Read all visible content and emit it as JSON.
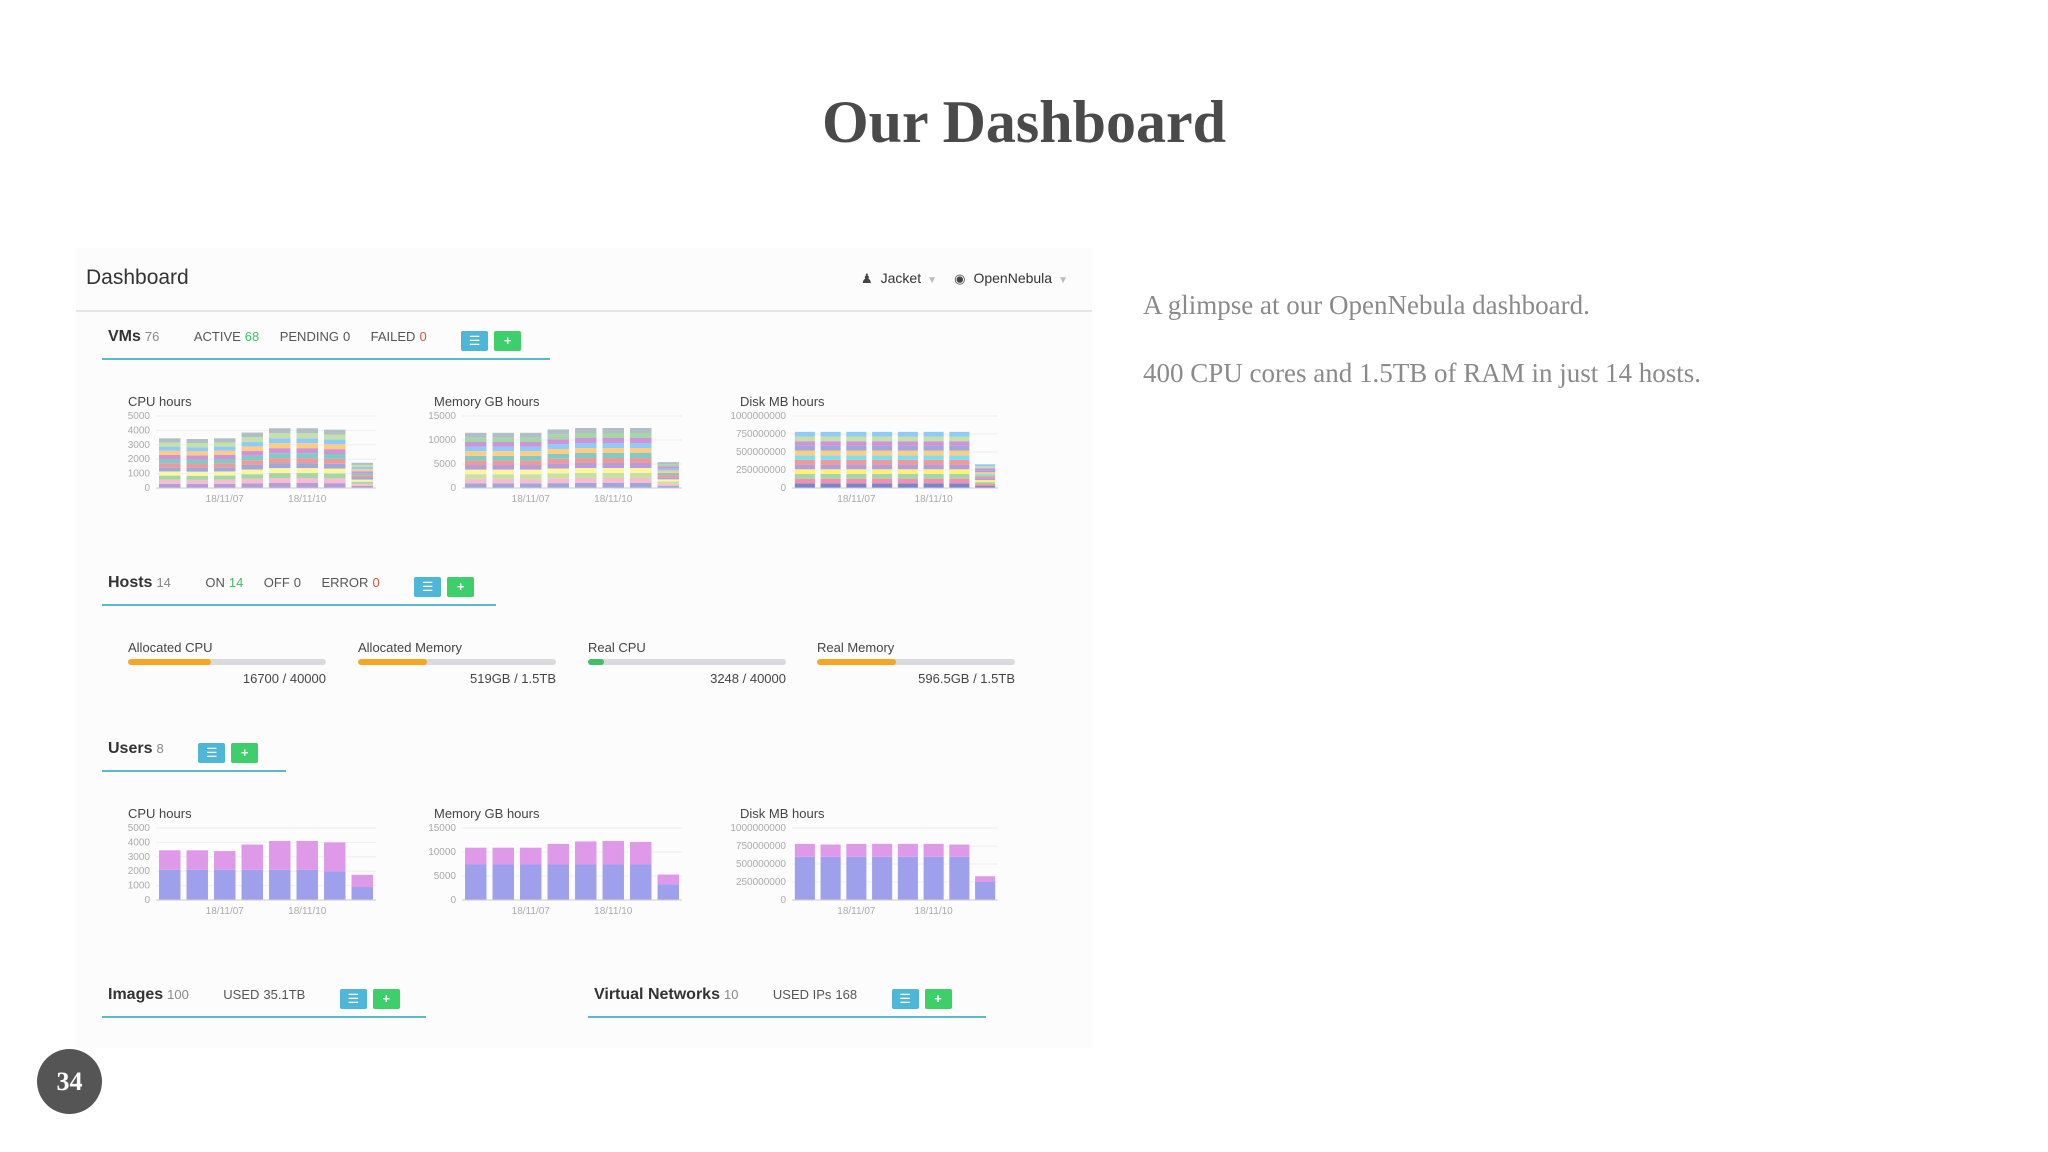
{
  "slide": {
    "title": "Our Dashboard",
    "bullets": [
      "A glimpse at our OpenNebula dashboard.",
      "400 CPU cores and 1.5TB of RAM in just 14 hosts."
    ],
    "page_number": "34"
  },
  "header": {
    "title": "Dashboard",
    "user": "Jacket",
    "zone": "OpenNebula"
  },
  "sections": {
    "vms": {
      "name": "VMs",
      "count": "76",
      "stats": [
        {
          "label": "ACTIVE",
          "value": "68",
          "color": "#3fbf66"
        },
        {
          "label": "PENDING",
          "value": "0",
          "color": "#555555"
        },
        {
          "label": "FAILED",
          "value": "0",
          "color": "#e0503a"
        }
      ]
    },
    "hosts": {
      "name": "Hosts",
      "count": "14",
      "stats": [
        {
          "label": "ON",
          "value": "14",
          "color": "#3fbf66"
        },
        {
          "label": "OFF",
          "value": "0",
          "color": "#555555"
        },
        {
          "label": "ERROR",
          "value": "0",
          "color": "#e0503a"
        }
      ]
    },
    "users": {
      "name": "Users",
      "count": "8"
    },
    "images": {
      "name": "Images",
      "count": "100",
      "used_label": "USED",
      "used_value": "35.1TB"
    },
    "vnets": {
      "name": "Virtual Networks",
      "count": "10",
      "used_label": "USED IPs",
      "used_value": "168"
    }
  },
  "host_bars": [
    {
      "label": "Allocated CPU",
      "value": "16700 / 40000",
      "fraction": 0.42,
      "color": "#f5a623"
    },
    {
      "label": "Allocated Memory",
      "value": "519GB / 1.5TB",
      "fraction": 0.35,
      "color": "#f5a623"
    },
    {
      "label": "Real CPU",
      "value": "3248 / 40000",
      "fraction": 0.08,
      "color": "#3fbf66"
    },
    {
      "label": "Real Memory",
      "value": "596.5GB / 1.5TB",
      "fraction": 0.4,
      "color": "#f5a623"
    }
  ],
  "chart_data": [
    {
      "id": "vm-cpu",
      "type": "bar",
      "stacked": true,
      "title": "CPU hours",
      "x_ticks": [
        "18/11/07",
        "18/11/10"
      ],
      "y_ticks": [
        "5000",
        "4000",
        "3000",
        "2000",
        "1000",
        "0"
      ],
      "ylim": [
        0,
        5000
      ],
      "totals": [
        3450,
        3400,
        3450,
        3850,
        4150,
        4150,
        4050,
        1750
      ],
      "segment_colors": [
        "#b39ddb",
        "#f8bbd0",
        "#a5d6a7",
        "#fff59d",
        "#9fa8da",
        "#ef9a9a",
        "#80cbc4",
        "#ce93d8",
        "#ffcc80",
        "#90caf9",
        "#c5e1a5",
        "#b0bec5"
      ]
    },
    {
      "id": "vm-mem",
      "type": "bar",
      "stacked": true,
      "title": "Memory GB hours",
      "x_ticks": [
        "18/11/07",
        "18/11/10"
      ],
      "y_ticks": [
        "15000",
        "10000",
        "5000",
        "0"
      ],
      "ylim": [
        0,
        15000
      ],
      "totals": [
        11500,
        11500,
        11500,
        12200,
        12500,
        12500,
        12500,
        5400
      ],
      "segment_colors": [
        "#9fa8da",
        "#f8bbd0",
        "#c5e1a5",
        "#fff59d",
        "#b39ddb",
        "#ef9a9a",
        "#80cbc4",
        "#ffcc80",
        "#90caf9",
        "#ce93d8",
        "#a5d6a7",
        "#b0bec5"
      ]
    },
    {
      "id": "vm-disk",
      "type": "bar",
      "stacked": true,
      "title": "Disk MB hours",
      "x_ticks": [
        "18/11/07",
        "18/11/10"
      ],
      "y_ticks": [
        "1000000000",
        "750000000",
        "500000000",
        "250000000",
        "0"
      ],
      "ylim": [
        0,
        1000000000
      ],
      "totals": [
        780000000,
        780000000,
        780000000,
        780000000,
        780000000,
        780000000,
        780000000,
        330000000
      ],
      "segment_colors": [
        "#7986cb",
        "#f48fb1",
        "#a5d6a7",
        "#fff176",
        "#b39ddb",
        "#ef9a9a",
        "#80deea",
        "#ffcc80",
        "#9fa8da",
        "#ce93d8",
        "#c5e1a5",
        "#90caf9"
      ]
    },
    {
      "id": "user-cpu",
      "type": "bar",
      "stacked": true,
      "title": "CPU hours",
      "x_ticks": [
        "18/11/07",
        "18/11/10"
      ],
      "y_ticks": [
        "5000",
        "4000",
        "3000",
        "2000",
        "1000",
        "0"
      ],
      "ylim": [
        0,
        5000
      ],
      "series": [
        {
          "color": "#9fa0ec",
          "values": [
            2100,
            2100,
            2100,
            2100,
            2100,
            2100,
            2000,
            900
          ]
        },
        {
          "color": "#de9ae8",
          "values": [
            1350,
            1350,
            1300,
            1750,
            2000,
            2000,
            2000,
            850
          ]
        }
      ]
    },
    {
      "id": "user-mem",
      "type": "bar",
      "stacked": true,
      "title": "Memory GB hours",
      "x_ticks": [
        "18/11/07",
        "18/11/10"
      ],
      "y_ticks": [
        "15000",
        "10000",
        "5000",
        "0"
      ],
      "ylim": [
        0,
        15000
      ],
      "series": [
        {
          "color": "#9fa0ec",
          "values": [
            7400,
            7400,
            7400,
            7400,
            7400,
            7400,
            7400,
            3300
          ]
        },
        {
          "color": "#de9ae8",
          "values": [
            3500,
            3500,
            3500,
            4300,
            4800,
            4900,
            4700,
            2000
          ]
        }
      ]
    },
    {
      "id": "user-disk",
      "type": "bar",
      "stacked": true,
      "title": "Disk MB hours",
      "x_ticks": [
        "18/11/07",
        "18/11/10"
      ],
      "y_ticks": [
        "1000000000",
        "750000000",
        "500000000",
        "250000000",
        "0"
      ],
      "ylim": [
        0,
        1000000000
      ],
      "series": [
        {
          "color": "#9fa0ec",
          "values": [
            600000000,
            600000000,
            600000000,
            600000000,
            600000000,
            600000000,
            600000000,
            250000000
          ]
        },
        {
          "color": "#de9ae8",
          "values": [
            180000000,
            170000000,
            180000000,
            180000000,
            180000000,
            180000000,
            170000000,
            80000000
          ]
        }
      ]
    }
  ]
}
